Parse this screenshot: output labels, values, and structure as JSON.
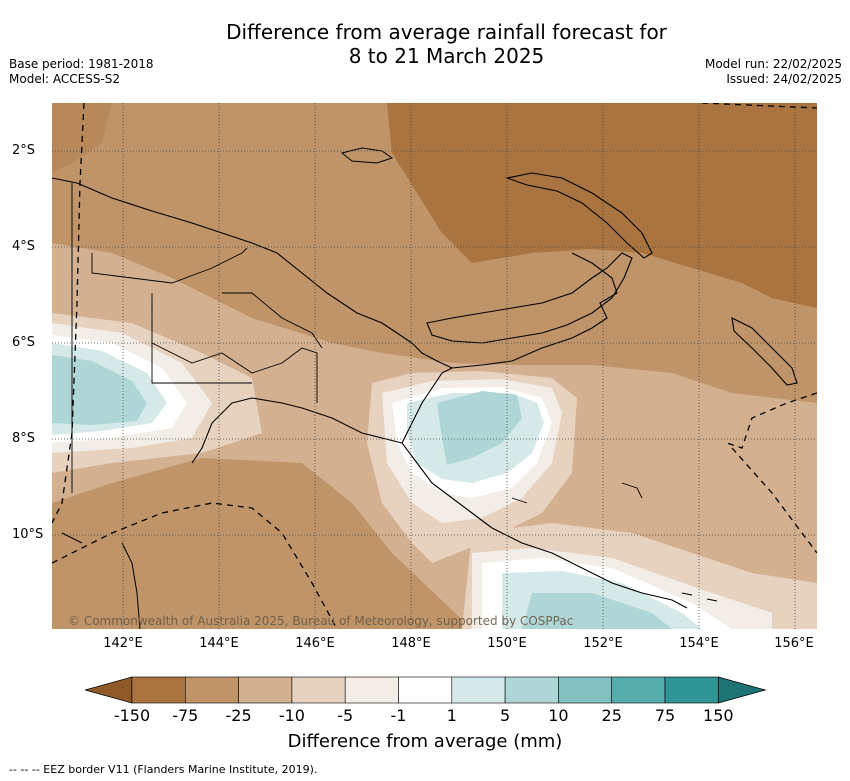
{
  "title_line1": "Difference from average rainfall forecast for",
  "title_line2": "8 to 21 March 2025",
  "meta_left": {
    "base_period": "Base period: 1981-2018",
    "model": "Model: ACCESS-S2"
  },
  "meta_right": {
    "model_run": "Model run: 22/02/2025",
    "issued": "Issued: 24/02/2025"
  },
  "lat_labels": [
    "2°S",
    "4°S",
    "6°S",
    "8°S",
    "10°S"
  ],
  "lon_labels": [
    "142°E",
    "144°E",
    "146°E",
    "148°E",
    "150°E",
    "152°E",
    "154°E",
    "156°E"
  ],
  "copyright": "© Commonwealth of Australia 2025, Bureau of Meteorology, supported by COSPPac",
  "colorbar": {
    "title": "Difference from average (mm)",
    "ticks": [
      "-150",
      "-75",
      "-25",
      "-10",
      "-5",
      "-1",
      "1",
      "5",
      "10",
      "25",
      "75",
      "150"
    ],
    "colors": [
      "#8f5a27",
      "#a9743f",
      "#bf9468",
      "#d3b090",
      "#e6d2bf",
      "#f2ede6",
      "#ffffff",
      "#d5e9e9",
      "#aed6d6",
      "#82c1c0",
      "#57acac",
      "#2f9595",
      "#1e7373"
    ]
  },
  "eez_legend": "--  --  -- EEZ border V11 (Flanders Marine Institute, 2019)."
}
